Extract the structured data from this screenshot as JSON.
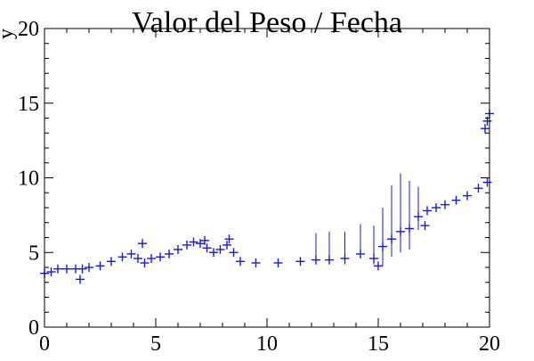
{
  "chart_data": {
    "type": "scatter",
    "title": "Valor del Peso / Fecha",
    "xlabel": "",
    "ylabel": "y",
    "xlim": [
      0,
      20
    ],
    "ylim": [
      0,
      20
    ],
    "x_ticks": [
      0,
      5,
      10,
      15,
      20
    ],
    "y_ticks": [
      0,
      5,
      10,
      15,
      20
    ],
    "x_tick_labels": [
      "0",
      "5",
      "10",
      "15",
      "20"
    ],
    "y_tick_labels": [
      "0",
      "5",
      "10",
      "15",
      "20"
    ],
    "grid": false,
    "marker": "cross",
    "color": "#1a1adc",
    "series": [
      {
        "x": [
          0.0,
          0.3,
          0.6,
          1.0,
          1.4,
          1.7,
          2.0,
          2.5,
          3.0,
          3.5,
          3.9,
          4.2,
          4.5,
          4.8,
          5.2,
          5.6,
          6.0,
          6.4,
          6.7,
          7.0,
          7.3,
          7.6,
          7.9,
          8.2,
          8.5,
          8.8,
          9.5,
          10.5,
          11.5,
          12.2,
          12.8,
          13.5,
          14.2,
          14.8,
          15.2,
          15.6,
          16.0,
          16.4,
          16.8,
          17.2,
          17.6,
          18.0,
          18.5,
          19.0,
          19.5,
          19.9
        ],
        "y": [
          3.6,
          3.7,
          3.9,
          3.9,
          3.9,
          3.9,
          4.0,
          4.1,
          4.4,
          4.7,
          4.9,
          4.6,
          4.3,
          4.6,
          4.7,
          4.9,
          5.2,
          5.5,
          5.7,
          5.6,
          5.3,
          5.0,
          5.2,
          5.5,
          5.0,
          4.4,
          4.3,
          4.3,
          4.4,
          4.5,
          4.5,
          4.6,
          4.9,
          4.6,
          5.4,
          5.9,
          6.4,
          6.6,
          7.4,
          7.8,
          8.0,
          8.2,
          8.5,
          8.8,
          9.3,
          9.7
        ],
        "y_low": [
          3.5,
          3.6,
          3.8,
          3.8,
          3.7,
          3.6,
          3.9,
          4.0,
          4.3,
          4.6,
          4.8,
          4.4,
          4.2,
          4.4,
          4.6,
          4.8,
          5.1,
          5.4,
          5.6,
          5.4,
          5.1,
          4.9,
          5.0,
          5.3,
          4.8,
          4.1,
          4.1,
          4.1,
          4.2,
          4.2,
          4.2,
          4.2,
          4.6,
          4.2,
          4.1,
          4.7,
          5.0,
          5.2,
          6.5,
          7.6,
          7.9,
          8.1,
          8.4,
          8.7,
          9.2,
          9.6
        ],
        "y_high": [
          3.7,
          3.8,
          4.0,
          4.0,
          4.1,
          4.2,
          4.1,
          4.2,
          4.5,
          4.8,
          5.0,
          4.8,
          4.4,
          4.8,
          4.8,
          5.0,
          5.3,
          5.6,
          5.8,
          5.8,
          5.5,
          5.1,
          5.4,
          5.7,
          5.2,
          4.6,
          4.5,
          4.5,
          4.6,
          6.3,
          6.4,
          6.4,
          6.9,
          6.8,
          8.0,
          9.5,
          10.3,
          9.8,
          9.4,
          8.0,
          8.1,
          8.3,
          8.6,
          8.9,
          9.4,
          9.8
        ]
      },
      {
        "x": [
          1.6,
          4.4,
          7.2,
          8.3,
          15.0,
          17.1,
          19.8,
          19.9,
          20.0
        ],
        "y": [
          3.2,
          5.6,
          5.8,
          5.9,
          4.1,
          6.8,
          13.3,
          13.8,
          14.3
        ],
        "y_low": [
          3.0,
          5.4,
          5.6,
          5.7,
          4.0,
          6.6,
          13.0,
          13.5,
          14.0
        ],
        "y_high": [
          3.4,
          5.8,
          6.0,
          6.1,
          4.3,
          7.0,
          13.6,
          14.1,
          14.6
        ]
      }
    ]
  }
}
